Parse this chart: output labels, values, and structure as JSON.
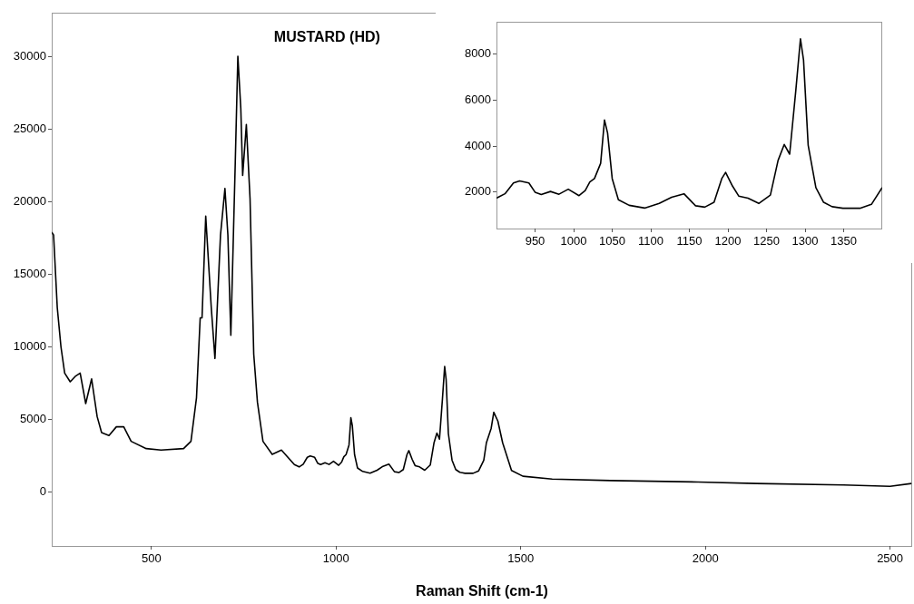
{
  "chart_data": [
    {
      "type": "line",
      "title": "MUSTARD (HD)",
      "xlabel": "Raman Shift (cm-1)",
      "color": "#000000",
      "marker": "none",
      "grid": false,
      "legend": false,
      "x": [
        230,
        235,
        245,
        255,
        265,
        280,
        295,
        307,
        322,
        338,
        353,
        365,
        385,
        405,
        425,
        445,
        486,
        526,
        587,
        607,
        622,
        632,
        637,
        647,
        662,
        672,
        687,
        699,
        707,
        715,
        727,
        734,
        742,
        747,
        757,
        767,
        777,
        787,
        802,
        827,
        852,
        887,
        900,
        911,
        922,
        930,
        942,
        950,
        958,
        970,
        981,
        993,
        1007,
        1015,
        1021,
        1027,
        1035,
        1040,
        1044,
        1050,
        1058,
        1072,
        1092,
        1111,
        1127,
        1143,
        1158,
        1170,
        1182,
        1192,
        1197,
        1206,
        1214,
        1226,
        1240,
        1255,
        1265,
        1273,
        1280,
        1288,
        1294,
        1298,
        1304,
        1314,
        1324,
        1335,
        1349,
        1371,
        1386,
        1400,
        1407,
        1420,
        1427,
        1438,
        1451,
        1475,
        1506,
        1585,
        1743,
        1980,
        2137,
        2374,
        2500,
        2558
      ],
      "values": [
        17900,
        17700,
        12700,
        10000,
        8200,
        7600,
        8000,
        8200,
        6100,
        7800,
        5200,
        4100,
        3900,
        4500,
        4500,
        3500,
        3000,
        2900,
        3000,
        3500,
        6500,
        12000,
        12000,
        19000,
        12700,
        9200,
        17700,
        20900,
        17700,
        10800,
        22700,
        30000,
        26400,
        21800,
        25300,
        20200,
        9500,
        6200,
        3500,
        2600,
        2900,
        1900,
        1740,
        1930,
        2400,
        2490,
        2400,
        2000,
        1900,
        2030,
        1910,
        2130,
        1850,
        2070,
        2440,
        2590,
        3250,
        5130,
        4570,
        2590,
        1670,
        1430,
        1310,
        1510,
        1780,
        1930,
        1410,
        1350,
        1560,
        2590,
        2860,
        2260,
        1830,
        1740,
        1510,
        1870,
        3380,
        4070,
        3650,
        6420,
        8660,
        7740,
        4040,
        2200,
        1560,
        1370,
        1300,
        1300,
        1470,
        2200,
        3400,
        4400,
        5500,
        4900,
        3400,
        1500,
        1100,
        900,
        800,
        700,
        600,
        500,
        400,
        600
      ],
      "xlim": [
        230,
        2560
      ],
      "ylim": [
        -3700,
        33000
      ],
      "xticks": [
        500,
        1000,
        1500,
        2000,
        2500
      ],
      "yticks": [
        0,
        5000,
        10000,
        15000,
        20000,
        25000,
        30000
      ]
    },
    {
      "type": "line",
      "color": "#000000",
      "marker": "none",
      "grid": false,
      "legend": false,
      "x": [
        900,
        911,
        922,
        930,
        942,
        950,
        958,
        970,
        981,
        993,
        1007,
        1015,
        1021,
        1027,
        1035,
        1040,
        1044,
        1050,
        1058,
        1072,
        1092,
        1111,
        1127,
        1143,
        1158,
        1170,
        1182,
        1192,
        1197,
        1206,
        1214,
        1226,
        1240,
        1255,
        1265,
        1273,
        1280,
        1288,
        1294,
        1298,
        1304,
        1314,
        1324,
        1335,
        1349,
        1371,
        1386,
        1400
      ],
      "values": [
        1740,
        1930,
        2400,
        2490,
        2400,
        2000,
        1900,
        2030,
        1910,
        2130,
        1850,
        2070,
        2440,
        2590,
        3250,
        5130,
        4570,
        2590,
        1670,
        1430,
        1310,
        1510,
        1780,
        1930,
        1410,
        1350,
        1560,
        2590,
        2860,
        2260,
        1830,
        1740,
        1510,
        1870,
        3380,
        4070,
        3650,
        6420,
        8660,
        7740,
        4040,
        2200,
        1560,
        1370,
        1300,
        1300,
        1470,
        2200
      ],
      "xlim": [
        900,
        1400
      ],
      "ylim": [
        420,
        9400
      ],
      "xticks": [
        950,
        1000,
        1050,
        1100,
        1150,
        1200,
        1250,
        1300,
        1350
      ],
      "yticks": [
        2000,
        4000,
        6000,
        8000
      ]
    }
  ]
}
